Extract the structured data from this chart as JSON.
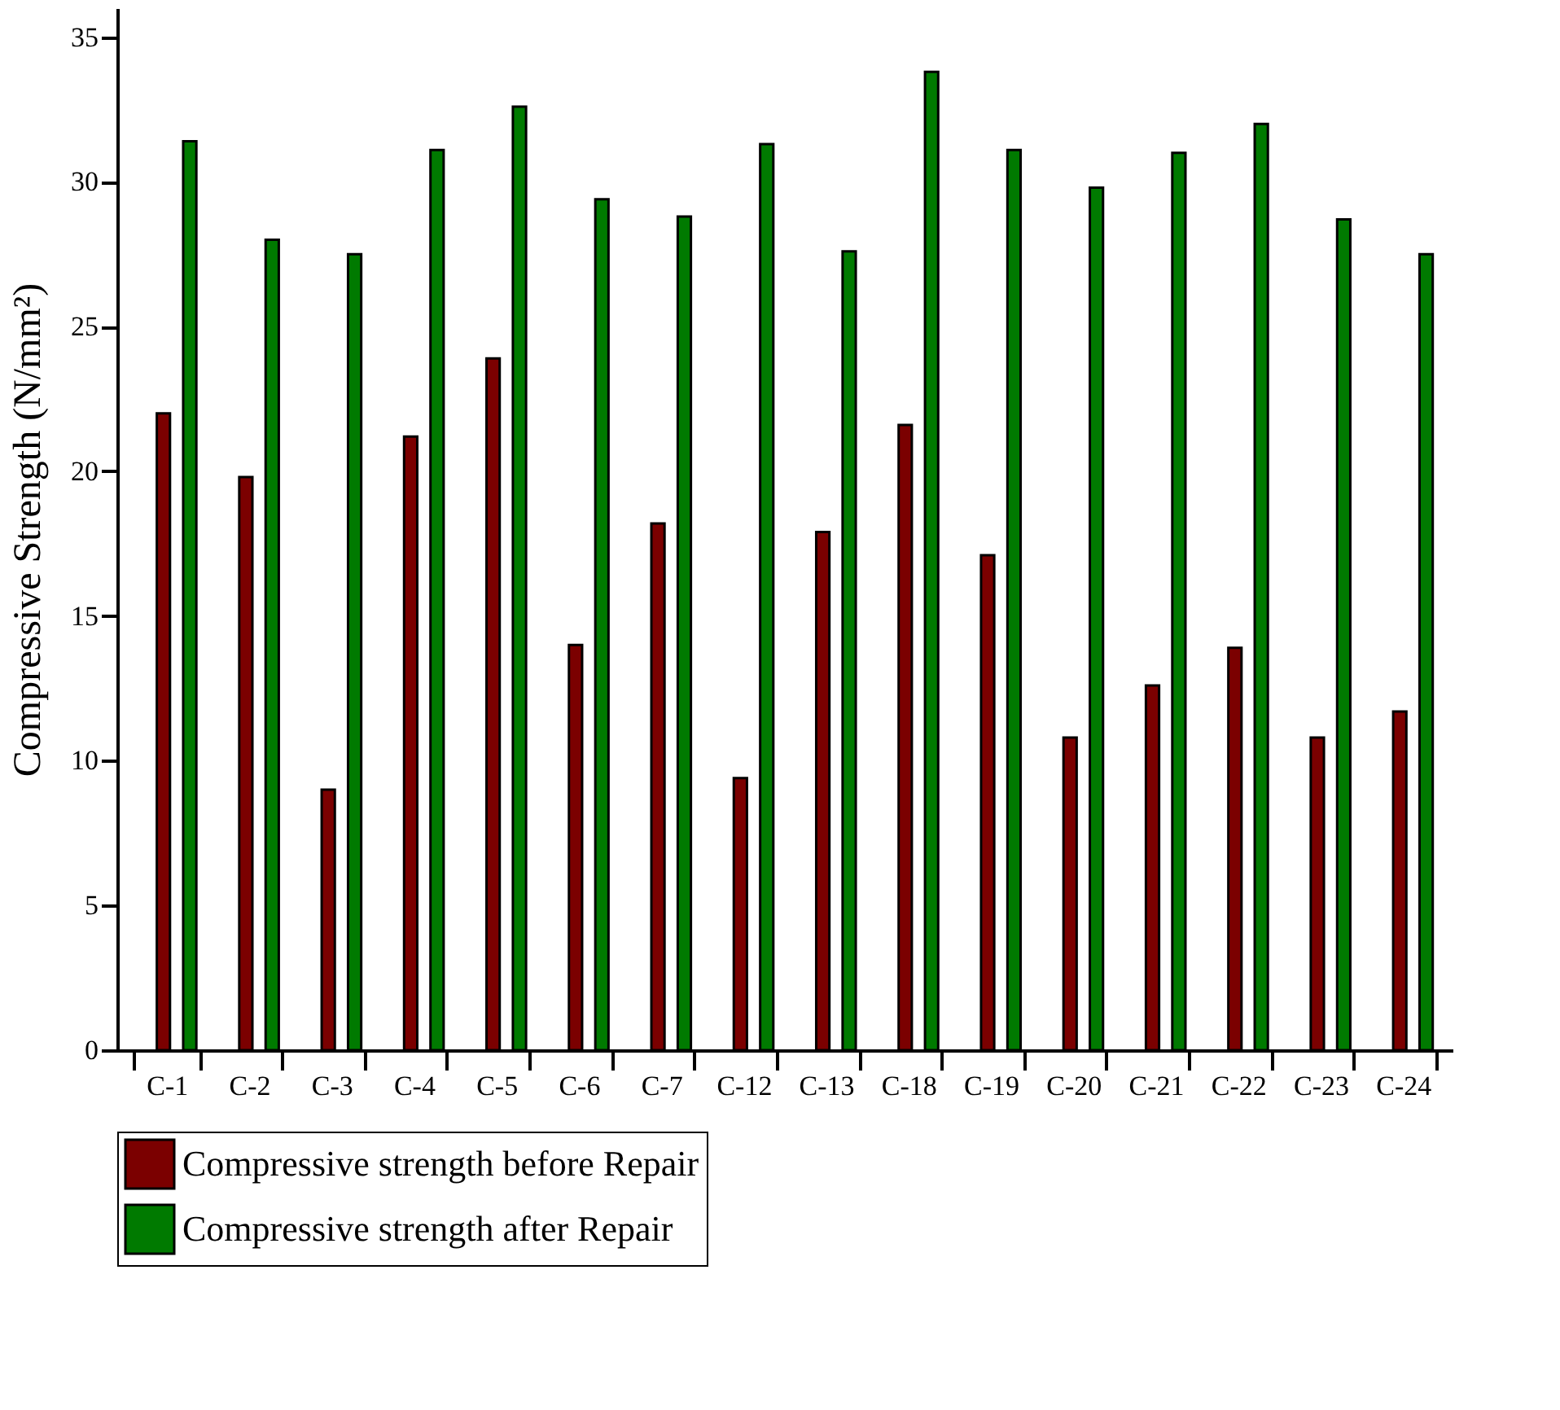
{
  "chart_data": {
    "type": "bar",
    "ylabel": "Compressive Strength (N/mm²)",
    "categories": [
      "C-1",
      "C-2",
      "C-3",
      "C-4",
      "C-5",
      "C-6",
      "C-7",
      "C-12",
      "C-13",
      "C-18",
      "C-19",
      "C-20",
      "C-21",
      "C-22",
      "C-23",
      "C-24"
    ],
    "series": [
      {
        "name": "Compressive strength before Repair",
        "color": "#7b0000",
        "values": [
          22.0,
          19.8,
          9.0,
          21.2,
          23.9,
          14.0,
          18.2,
          9.4,
          17.9,
          21.6,
          17.1,
          10.8,
          12.6,
          13.9,
          10.8,
          11.7
        ]
      },
      {
        "name": "Compressive strength after Repair",
        "color": "#007a00",
        "values": [
          31.4,
          28.0,
          27.5,
          31.1,
          32.6,
          29.4,
          28.8,
          31.3,
          27.6,
          33.8,
          31.1,
          29.8,
          31.0,
          32.0,
          28.7,
          27.5
        ]
      }
    ],
    "ylim": [
      0,
      36
    ],
    "yticks": [
      0,
      5,
      10,
      15,
      20,
      25,
      30,
      35
    ],
    "grid": false,
    "legend": "bottom"
  }
}
